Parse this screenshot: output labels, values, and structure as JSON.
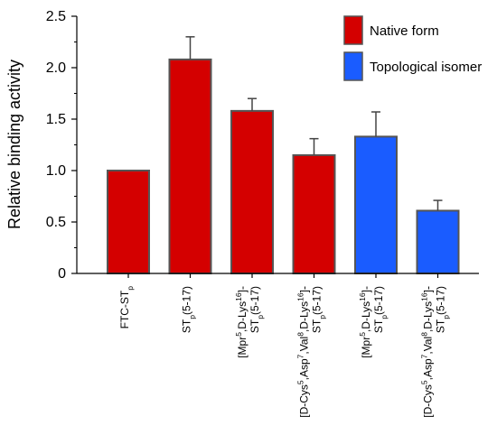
{
  "chart_data": {
    "type": "bar",
    "ylabel": "Relative binding activity",
    "ylim": [
      0,
      2.5
    ],
    "yticks": [
      "0",
      "0.5",
      "1.0",
      "1.5",
      "2.0",
      "2.5"
    ],
    "grid": false,
    "legend_position": "top-right",
    "categories": [
      [
        {
          "t": "FTC-ST"
        },
        {
          "t": "p",
          "sub": true
        }
      ],
      [
        {
          "t": "ST"
        },
        {
          "t": "p",
          "sub": true
        },
        {
          "t": "(5-17)"
        }
      ],
      [
        {
          "t": "[Mpr"
        },
        {
          "t": "5",
          "sup": true
        },
        {
          "t": ",D-Lys"
        },
        {
          "t": "16",
          "sup": true
        },
        {
          "t": "]-ST"
        },
        {
          "t": "p",
          "sub": true
        },
        {
          "t": "(5-17)"
        }
      ],
      [
        {
          "t": "[D-Cys"
        },
        {
          "t": "5",
          "sup": true
        },
        {
          "t": ",Asp"
        },
        {
          "t": "7",
          "sup": true
        },
        {
          "t": ",Val"
        },
        {
          "t": "8",
          "sup": true
        },
        {
          "t": ",D-Lys"
        },
        {
          "t": "16",
          "sup": true
        },
        {
          "t": "]-ST"
        },
        {
          "t": "p",
          "sub": true
        },
        {
          "t": "(5-17)"
        }
      ],
      [
        {
          "t": "[Mpr"
        },
        {
          "t": "5",
          "sup": true
        },
        {
          "t": ",D-Lys"
        },
        {
          "t": "16",
          "sup": true
        },
        {
          "t": "]-ST"
        },
        {
          "t": "p",
          "sub": true
        },
        {
          "t": "(5-17)"
        }
      ],
      [
        {
          "t": "[D-Cys"
        },
        {
          "t": "5",
          "sup": true
        },
        {
          "t": ",Asp"
        },
        {
          "t": "7",
          "sup": true
        },
        {
          "t": ",Val"
        },
        {
          "t": "8",
          "sup": true
        },
        {
          "t": ",D-Lys"
        },
        {
          "t": "16",
          "sup": true
        },
        {
          "t": "]-ST"
        },
        {
          "t": "p",
          "sub": true
        },
        {
          "t": "(5-17)"
        }
      ]
    ],
    "values": [
      1.0,
      2.08,
      1.58,
      1.15,
      1.33,
      0.61
    ],
    "errors": [
      0,
      0.22,
      0.12,
      0.16,
      0.24,
      0.1
    ],
    "series_index": [
      0,
      0,
      0,
      0,
      1,
      1
    ],
    "series": [
      {
        "name": "Native form",
        "color": "#d40000"
      },
      {
        "name": "Topological isomer",
        "color": "#1a5cff"
      }
    ]
  }
}
